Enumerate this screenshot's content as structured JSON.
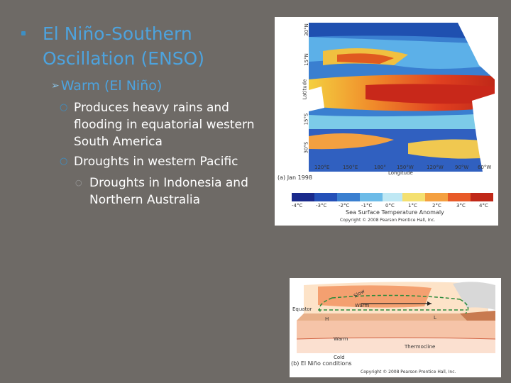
{
  "slide": {
    "title": "El Niño-Southern Oscillation (ENSO)",
    "level1": "Warm (El Niño)",
    "bullets": [
      {
        "text": "Produces heavy rains and flooding in equatorial western South America"
      },
      {
        "text": "Droughts in western Pacific",
        "sub": "Droughts in Indonesia and Northern Australia"
      }
    ]
  },
  "map_figure": {
    "lat_labels": [
      "30°N",
      "15°N",
      "Latitude",
      "15°S",
      "30°S"
    ],
    "lon_labels": [
      "120°E",
      "150°E",
      "180°",
      "150°W",
      "120°W",
      "90°W",
      "60°W"
    ],
    "lon_axis": "Longitude",
    "caption": "(a)  Jan 1998",
    "scale_labels": [
      "-4°C",
      "-3°C",
      "-2°C",
      "-1°C",
      "0°C",
      "1°C",
      "2°C",
      "3°C",
      "4°C"
    ],
    "scale_title": "Sea Surface Temperature Anomaly",
    "copyright": "Copyright © 2008 Pearson Prentice Hall, Inc."
  },
  "diagram_figure": {
    "equator": "Equator",
    "warm": "Warm",
    "cold": "Cold",
    "thermocline": "Thermocline",
    "slow": "Slow",
    "h": "H",
    "l": "L",
    "caption": "(b) El Niño conditions",
    "copyright": "Copyright © 2008 Pearson Prentice Hall, Inc."
  },
  "colors": {
    "title": "#4da3de",
    "background": "#6e6a66"
  }
}
